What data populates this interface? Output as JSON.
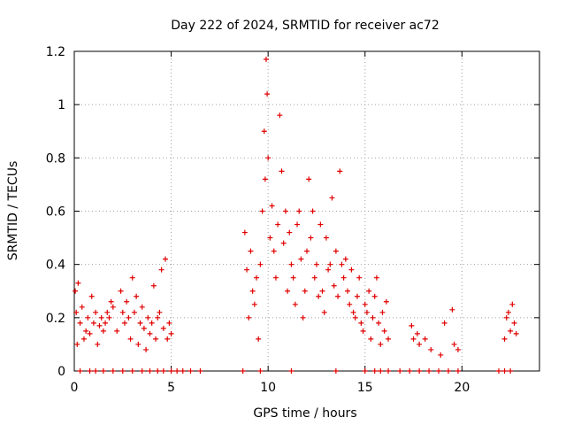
{
  "chart_data": {
    "type": "scatter",
    "title": "Day 222 of 2024, SRMTID for receiver ac72",
    "xlabel": "GPS time / hours",
    "ylabel": "SRMTID / TECUs",
    "xlim": [
      0,
      24
    ],
    "ylim": [
      0,
      1.2
    ],
    "x_ticks": [
      {
        "value": 0,
        "label": "0"
      },
      {
        "value": 5,
        "label": "5"
      },
      {
        "value": 10,
        "label": "10"
      },
      {
        "value": 15,
        "label": "15"
      },
      {
        "value": 20,
        "label": "20"
      }
    ],
    "y_ticks": [
      {
        "value": 0,
        "label": "0"
      },
      {
        "value": 0.2,
        "label": "0.2"
      },
      {
        "value": 0.4,
        "label": "0.4"
      },
      {
        "value": 0.6,
        "label": "0.6"
      },
      {
        "value": 0.8,
        "label": "0.8"
      },
      {
        "value": 1.0,
        "label": "1"
      },
      {
        "value": 1.2,
        "label": "1.2"
      }
    ],
    "grid": true,
    "marker": "+",
    "color": "#e00000",
    "series": [
      {
        "name": "SRMTID",
        "x": [
          0.05,
          0.1,
          0.15,
          0.2,
          0.3,
          0.4,
          0.5,
          0.6,
          0.7,
          0.8,
          0.9,
          1.0,
          1.1,
          1.2,
          1.3,
          1.4,
          1.5,
          1.6,
          1.7,
          1.8,
          1.9,
          2.0,
          2.2,
          2.4,
          2.5,
          2.6,
          2.7,
          2.8,
          2.9,
          3.0,
          3.1,
          3.2,
          3.3,
          3.4,
          3.5,
          3.6,
          3.7,
          3.8,
          3.9,
          4.0,
          4.1,
          4.2,
          4.3,
          4.4,
          4.5,
          4.6,
          4.7,
          4.8,
          4.9,
          5.0,
          8.8,
          8.9,
          9.0,
          9.1,
          9.2,
          9.3,
          9.4,
          9.5,
          9.6,
          9.7,
          9.8,
          9.85,
          9.9,
          9.95,
          10.0,
          10.1,
          10.2,
          10.3,
          10.4,
          10.5,
          10.6,
          10.7,
          10.8,
          10.9,
          11.0,
          11.1,
          11.2,
          11.3,
          11.4,
          11.5,
          11.6,
          11.7,
          11.8,
          11.9,
          12.0,
          12.1,
          12.2,
          12.3,
          12.4,
          12.5,
          12.6,
          12.7,
          12.8,
          12.9,
          13.0,
          13.1,
          13.2,
          13.3,
          13.4,
          13.5,
          13.6,
          13.7,
          13.8,
          13.9,
          14.0,
          14.1,
          14.2,
          14.3,
          14.4,
          14.5,
          14.6,
          14.7,
          14.8,
          14.9,
          15.0,
          15.1,
          15.2,
          15.3,
          15.4,
          15.5,
          15.6,
          15.7,
          15.8,
          15.9,
          16.0,
          16.1,
          16.2,
          17.4,
          17.5,
          17.7,
          17.8,
          18.1,
          18.4,
          18.9,
          19.1,
          19.5,
          19.6,
          19.8,
          22.2,
          22.3,
          22.4,
          22.5,
          22.6,
          22.7,
          22.8
        ],
        "y": [
          0.3,
          0.22,
          0.1,
          0.33,
          0.18,
          0.24,
          0.12,
          0.15,
          0.2,
          0.14,
          0.28,
          0.18,
          0.22,
          0.1,
          0.17,
          0.2,
          0.15,
          0.18,
          0.22,
          0.2,
          0.26,
          0.24,
          0.15,
          0.3,
          0.22,
          0.18,
          0.26,
          0.2,
          0.12,
          0.35,
          0.22,
          0.28,
          0.1,
          0.18,
          0.24,
          0.16,
          0.08,
          0.2,
          0.14,
          0.18,
          0.32,
          0.12,
          0.2,
          0.22,
          0.38,
          0.16,
          0.42,
          0.12,
          0.18,
          0.14,
          0.52,
          0.38,
          0.2,
          0.45,
          0.3,
          0.25,
          0.35,
          0.12,
          0.4,
          0.6,
          0.9,
          0.72,
          1.17,
          1.04,
          0.8,
          0.5,
          0.62,
          0.45,
          0.35,
          0.55,
          0.96,
          0.75,
          0.48,
          0.6,
          0.3,
          0.52,
          0.4,
          0.35,
          0.25,
          0.55,
          0.6,
          0.42,
          0.2,
          0.3,
          0.45,
          0.72,
          0.5,
          0.6,
          0.35,
          0.4,
          0.28,
          0.55,
          0.3,
          0.22,
          0.5,
          0.38,
          0.4,
          0.65,
          0.32,
          0.45,
          0.28,
          0.75,
          0.4,
          0.35,
          0.42,
          0.3,
          0.25,
          0.38,
          0.22,
          0.2,
          0.28,
          0.35,
          0.18,
          0.15,
          0.25,
          0.22,
          0.3,
          0.12,
          0.2,
          0.28,
          0.35,
          0.18,
          0.1,
          0.22,
          0.15,
          0.26,
          0.12,
          0.17,
          0.12,
          0.14,
          0.1,
          0.12,
          0.08,
          0.06,
          0.18,
          0.23,
          0.1,
          0.08,
          0.12,
          0.2,
          0.22,
          0.15,
          0.25,
          0.18,
          0.14
        ],
        "zero_x": [
          0.3,
          0.8,
          1.1,
          1.5,
          2.0,
          2.5,
          3.0,
          3.5,
          3.9,
          4.3,
          4.6,
          5.0,
          5.3,
          5.6,
          6.0,
          6.5,
          8.7,
          9.6,
          11.2,
          13.5,
          15.0,
          15.5,
          15.8,
          16.2,
          16.8,
          17.3,
          17.8,
          18.3,
          18.8,
          19.3,
          19.8,
          21.9,
          22.2,
          22.5
        ]
      }
    ]
  }
}
